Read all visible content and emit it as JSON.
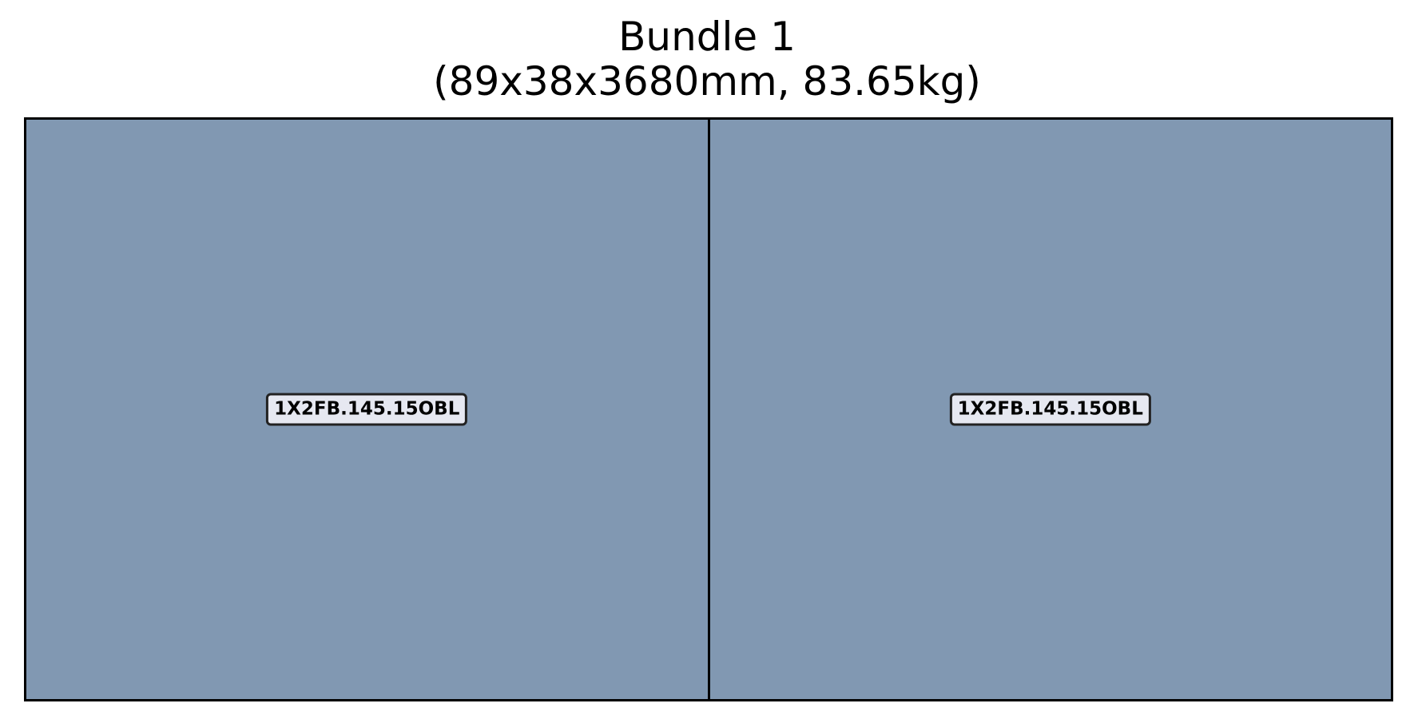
{
  "title": {
    "line1": "Bundle 1",
    "line2": "(89x38x3680mm, 83.65kg)"
  },
  "bundle": {
    "fill_color": "#8198b2",
    "label_color": "#e6e8f1",
    "pieces": [
      {
        "label": "1X2FB.145.15OBL"
      },
      {
        "label": "1X2FB.145.15OBL"
      }
    ]
  }
}
